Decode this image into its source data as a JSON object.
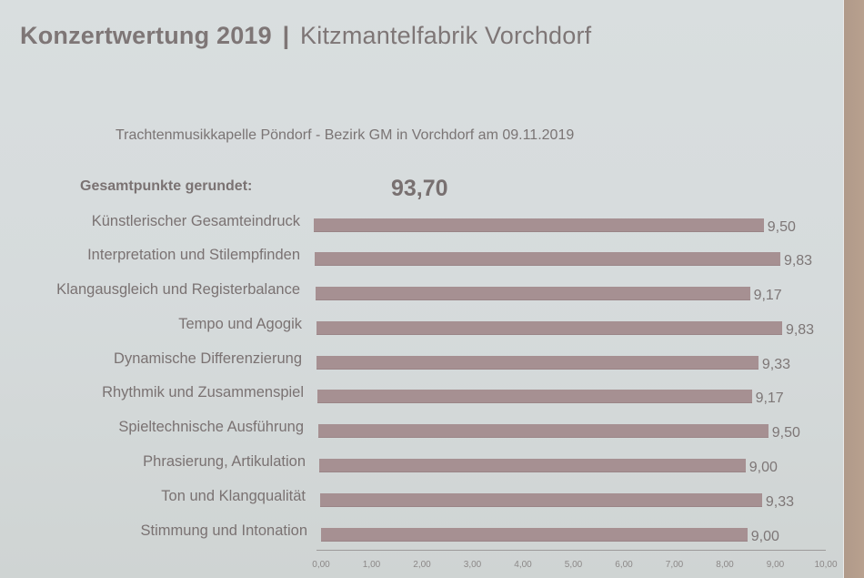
{
  "header": {
    "title_bold": "Konzertwertung 2019",
    "separator": "|",
    "title_venue": "Kitzmantelfabrik Vorchdorf"
  },
  "subtitle": "Trachtenmusikkapelle Pöndorf - Bezirk GM in Vorchdorf am 09.11.2019",
  "total": {
    "label": "Gesamtpunkte gerundet:",
    "value": "93,70"
  },
  "rows": [
    {
      "label": "Künstlerischer Gesamteindruck",
      "value": "9,50"
    },
    {
      "label": "Interpretation und Stilempfinden",
      "value": "9,83"
    },
    {
      "label": "Klangausgleich und Registerbalance",
      "value": "9,17"
    },
    {
      "label": "Tempo und Agogik",
      "value": "9,83"
    },
    {
      "label": "Dynamische Differenzierung",
      "value": "9,33"
    },
    {
      "label": "Rhythmik und Zusammenspiel",
      "value": "9,17"
    },
    {
      "label": "Spieltechnische Ausführung",
      "value": "9,50"
    },
    {
      "label": "Phrasierung, Artikulation",
      "value": "9,00"
    },
    {
      "label": "Ton und Klangqualität",
      "value": "9,33"
    },
    {
      "label": "Stimmung und Intonation",
      "value": "9,00"
    }
  ],
  "axis_ticks": [
    "0,00",
    "1,00",
    "2,00",
    "3,00",
    "4,00",
    "5,00",
    "6,00",
    "7,00",
    "8,00",
    "9,00",
    "10,00"
  ],
  "colors": {
    "bar": "#a69092",
    "text": "#7a7272",
    "background": "#d8dddd"
  },
  "chart_data": {
    "type": "bar",
    "orientation": "horizontal",
    "title": "Konzertwertung 2019 | Kitzmantelfabrik Vorchdorf",
    "subtitle": "Trachtenmusikkapelle Pöndorf - Bezirk GM in Vorchdorf am 09.11.2019",
    "annotation": "Gesamtpunkte gerundet: 93,70",
    "categories": [
      "Künstlerischer Gesamteindruck",
      "Interpretation und Stilempfinden",
      "Klangausgleich und Registerbalance",
      "Tempo und Agogik",
      "Dynamische Differenzierung",
      "Rhythmik und Zusammenspiel",
      "Spieltechnische Ausführung",
      "Phrasierung, Artikulation",
      "Ton und Klangqualität",
      "Stimmung und Intonation"
    ],
    "values": [
      9.5,
      9.83,
      9.17,
      9.83,
      9.33,
      9.17,
      9.5,
      9.0,
      9.33,
      9.0
    ],
    "xlabel": "",
    "ylabel": "",
    "xlim": [
      0,
      10
    ],
    "xticks": [
      0,
      1,
      2,
      3,
      4,
      5,
      6,
      7,
      8,
      9,
      10
    ],
    "grid": false,
    "legend": "none",
    "data_labels": true
  }
}
